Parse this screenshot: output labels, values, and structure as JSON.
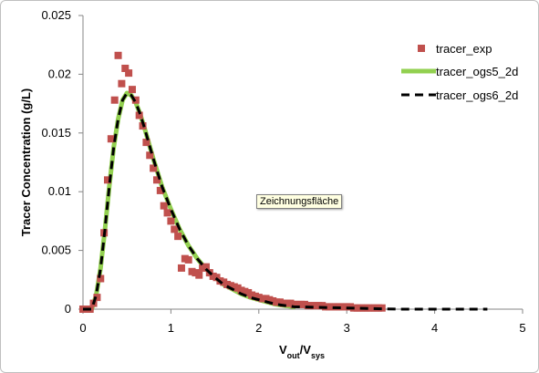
{
  "chart_data": {
    "type": "scatter",
    "xlabel": {
      "main": "V",
      "sub1": "out",
      "mid": "/V",
      "sub2": "sys"
    },
    "ylabel": "Tracer Concentration (g/L)",
    "xlim": [
      0,
      5
    ],
    "ylim": [
      0,
      0.025
    ],
    "x_ticks": [
      "0",
      "1",
      "2",
      "3",
      "4",
      "5"
    ],
    "y_ticks": [
      "0",
      "0.005",
      "0.01",
      "0.015",
      "0.02",
      "0.025"
    ],
    "grid": false,
    "legend_position": "top-right",
    "series": [
      {
        "name": "tracer_exp",
        "style": "markers",
        "color": "#c0504d",
        "x": [
          0.0,
          0.04,
          0.08,
          0.12,
          0.16,
          0.2,
          0.24,
          0.28,
          0.32,
          0.36,
          0.4,
          0.44,
          0.48,
          0.52,
          0.56,
          0.6,
          0.64,
          0.68,
          0.72,
          0.76,
          0.8,
          0.84,
          0.88,
          0.92,
          0.96,
          1.0,
          1.04,
          1.08,
          1.12,
          1.16,
          1.2,
          1.24,
          1.28,
          1.32,
          1.36,
          1.4,
          1.44,
          1.48,
          1.52,
          1.56,
          1.6,
          1.64,
          1.68,
          1.72,
          1.76,
          1.8,
          1.84,
          1.88,
          1.92,
          1.96,
          2.0,
          2.04,
          2.08,
          2.12,
          2.16,
          2.2,
          2.24,
          2.28,
          2.32,
          2.36,
          2.4,
          2.44,
          2.48,
          2.52,
          2.56,
          2.6,
          2.64,
          2.68,
          2.72,
          2.76,
          2.8,
          2.84,
          2.88,
          2.92,
          2.96,
          3.0,
          3.04,
          3.08,
          3.12,
          3.16,
          3.2,
          3.24,
          3.28,
          3.32,
          3.36,
          3.4
        ],
        "y": [
          0.0,
          0.0,
          0.0,
          0.0005,
          0.001,
          0.0026,
          0.0065,
          0.011,
          0.0145,
          0.0178,
          0.0216,
          0.0192,
          0.0205,
          0.0201,
          0.0187,
          0.0178,
          0.0165,
          0.0156,
          0.0142,
          0.0131,
          0.012,
          0.011,
          0.0101,
          0.0088,
          0.0082,
          0.0075,
          0.0068,
          0.0062,
          0.0035,
          0.0043,
          0.0042,
          0.0032,
          0.0031,
          0.0029,
          0.0035,
          0.0036,
          0.0031,
          0.0028,
          0.0027,
          0.0024,
          0.0023,
          0.0021,
          0.002,
          0.0019,
          0.0018,
          0.0016,
          0.0015,
          0.0014,
          0.0012,
          0.0011,
          0.001,
          0.0009,
          0.0009,
          0.0008,
          0.0007,
          0.0006,
          0.0006,
          0.0005,
          0.0005,
          0.0005,
          0.0004,
          0.0004,
          0.0004,
          0.0004,
          0.0003,
          0.0003,
          0.0003,
          0.0003,
          0.0003,
          0.0002,
          0.0002,
          0.0002,
          0.0002,
          0.0002,
          0.0002,
          0.0002,
          0.0002,
          0.0001,
          0.0001,
          0.0001,
          0.0001,
          0.0001,
          0.0001,
          0.0001,
          0.0001,
          0.0001
        ]
      },
      {
        "name": "tracer_ogs5_2d",
        "style": "line",
        "color": "#92d050",
        "x": [
          0.0,
          0.1,
          0.15,
          0.2,
          0.25,
          0.3,
          0.35,
          0.4,
          0.45,
          0.5,
          0.55,
          0.6,
          0.65,
          0.7,
          0.8,
          0.9,
          1.0,
          1.1,
          1.2,
          1.3,
          1.4,
          1.5,
          1.6,
          1.7,
          1.8,
          1.9,
          2.0,
          2.1,
          2.2,
          2.3,
          2.4
        ],
        "y": [
          0.0,
          0.0,
          0.0012,
          0.0035,
          0.0068,
          0.0105,
          0.0138,
          0.0162,
          0.0178,
          0.0184,
          0.0182,
          0.0176,
          0.0166,
          0.0154,
          0.0128,
          0.0104,
          0.0085,
          0.0068,
          0.0054,
          0.0043,
          0.0034,
          0.0027,
          0.0021,
          0.0017,
          0.0013,
          0.001,
          0.0008,
          0.0006,
          0.0004,
          0.0003,
          0.0002
        ]
      },
      {
        "name": "tracer_ogs6_2d",
        "style": "dashed",
        "color": "#000000",
        "x": [
          0.0,
          0.1,
          0.15,
          0.2,
          0.25,
          0.3,
          0.35,
          0.4,
          0.45,
          0.5,
          0.55,
          0.6,
          0.65,
          0.7,
          0.8,
          0.9,
          1.0,
          1.1,
          1.2,
          1.3,
          1.4,
          1.5,
          1.6,
          1.7,
          1.8,
          1.9,
          2.0,
          2.1,
          2.2,
          2.3,
          2.4,
          3.6,
          4.6
        ],
        "y": [
          0.0,
          0.0,
          0.0012,
          0.0035,
          0.0068,
          0.0105,
          0.0138,
          0.0162,
          0.0178,
          0.0184,
          0.0182,
          0.0176,
          0.0166,
          0.0154,
          0.0128,
          0.0104,
          0.0085,
          0.0068,
          0.0054,
          0.0043,
          0.0034,
          0.0027,
          0.0021,
          0.0017,
          0.0013,
          0.001,
          0.0008,
          0.0006,
          0.0004,
          0.0003,
          0.0002,
          0.0,
          0.0
        ]
      }
    ]
  },
  "tooltip": "Zeichnungsfläche"
}
